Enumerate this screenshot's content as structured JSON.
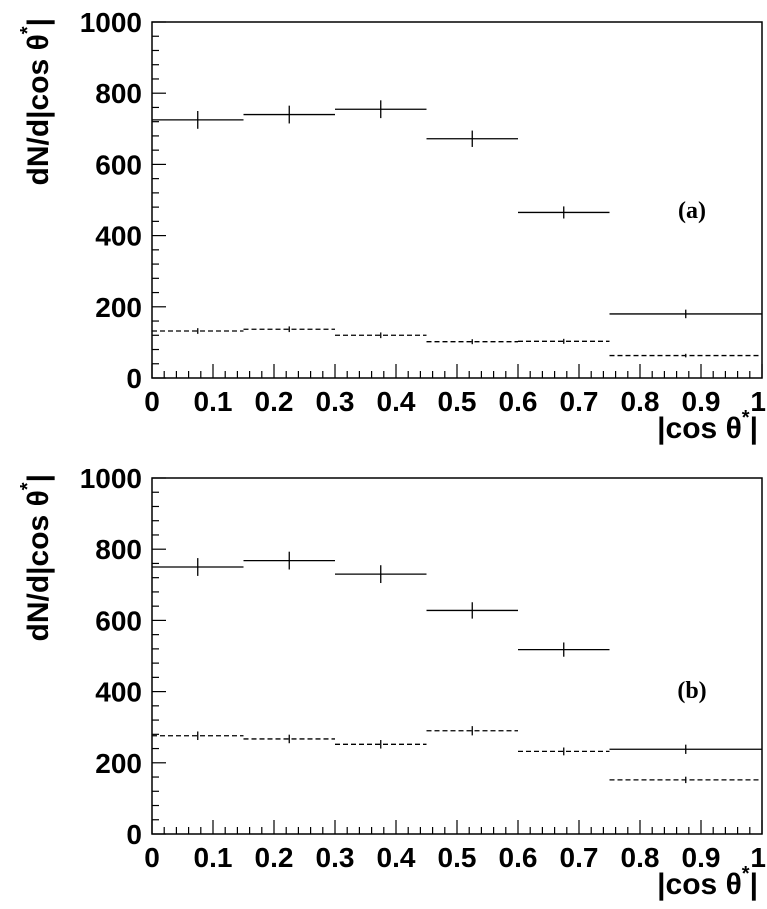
{
  "chart_data": [
    {
      "type": "histogram",
      "panel_label": "(a)",
      "xlabel": "|cos θ",
      "xlabel_sup": "*",
      "ylabel": "dN/d|cos θ",
      "ylabel_sup": "*",
      "xlim": [
        0,
        1
      ],
      "ylim": [
        0,
        1000
      ],
      "x_ticks": [
        "0",
        "0.1",
        "0.2",
        "0.3",
        "0.4",
        "0.5",
        "0.6",
        "0.7",
        "0.8",
        "0.9",
        "1"
      ],
      "y_ticks": [
        "0",
        "200",
        "400",
        "600",
        "800",
        "1000"
      ],
      "bin_edges": [
        0,
        0.15,
        0.3,
        0.45,
        0.6,
        0.75,
        1.0
      ],
      "series": [
        {
          "style": "solid",
          "values": [
            725,
            740,
            755,
            672,
            465,
            180
          ],
          "errors": [
            25,
            25,
            25,
            23,
            17,
            12
          ]
        },
        {
          "style": "dashed",
          "values": [
            132,
            137,
            120,
            102,
            103,
            63
          ],
          "errors": [
            8,
            8,
            8,
            7,
            7,
            5
          ]
        }
      ]
    },
    {
      "type": "histogram",
      "panel_label": "(b)",
      "xlabel": "|cos θ",
      "xlabel_sup": "*",
      "ylabel": "dN/d|cos θ",
      "ylabel_sup": "*",
      "xlim": [
        0,
        1
      ],
      "ylim": [
        0,
        1000
      ],
      "x_ticks": [
        "0",
        "0.1",
        "0.2",
        "0.3",
        "0.4",
        "0.5",
        "0.6",
        "0.7",
        "0.8",
        "0.9",
        "1"
      ],
      "y_ticks": [
        "0",
        "200",
        "400",
        "600",
        "800",
        "1000"
      ],
      "bin_edges": [
        0,
        0.15,
        0.3,
        0.45,
        0.6,
        0.75,
        1.0
      ],
      "series": [
        {
          "style": "solid",
          "values": [
            750,
            768,
            730,
            628,
            518,
            238
          ],
          "errors": [
            25,
            25,
            25,
            23,
            20,
            13
          ]
        },
        {
          "style": "dashed",
          "values": [
            276,
            267,
            252,
            290,
            232,
            152
          ],
          "errors": [
            12,
            12,
            12,
            13,
            11,
            9
          ]
        }
      ]
    }
  ]
}
